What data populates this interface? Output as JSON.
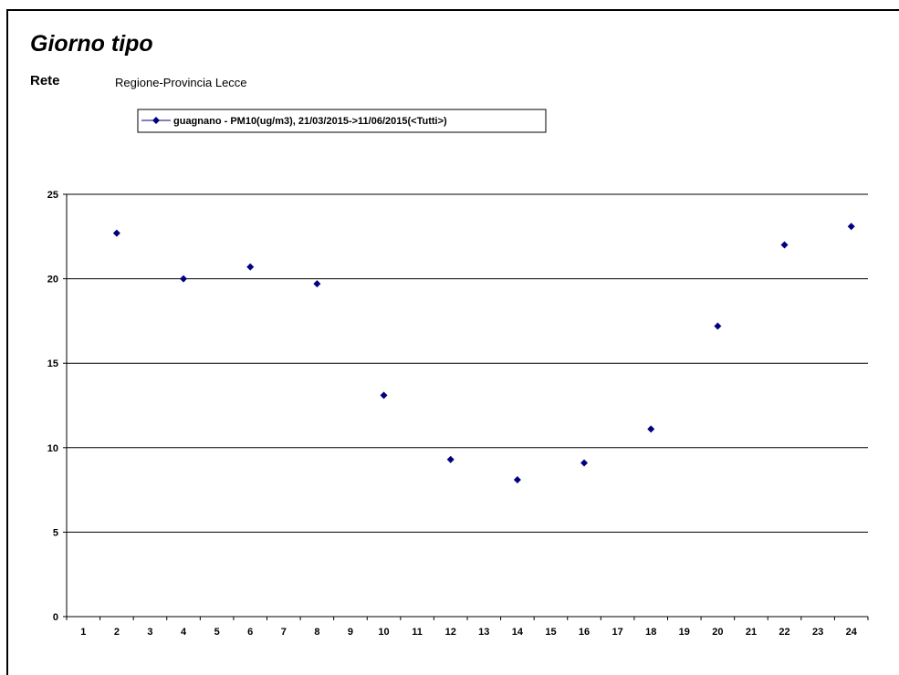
{
  "header": {
    "title": "Giorno tipo",
    "rete_label": "Rete",
    "rete_value": "Regione-Provincia Lecce"
  },
  "chart_data": {
    "type": "scatter",
    "title": "",
    "xlabel": "",
    "ylabel": "",
    "categories": [
      "1",
      "2",
      "3",
      "4",
      "5",
      "6",
      "7",
      "8",
      "9",
      "10",
      "11",
      "12",
      "13",
      "14",
      "15",
      "16",
      "17",
      "18",
      "19",
      "20",
      "21",
      "22",
      "23",
      "24"
    ],
    "series": [
      {
        "name": "guagnano - PM10(ug/m3), 21/03/2015->11/06/2015(<Tutti>)",
        "color": "#000080",
        "x": [
          2,
          4,
          6,
          8,
          10,
          12,
          14,
          16,
          18,
          20,
          22,
          24
        ],
        "y": [
          22.7,
          20.0,
          20.7,
          19.7,
          13.1,
          9.3,
          8.1,
          9.1,
          11.1,
          17.2,
          22.0,
          23.1
        ]
      }
    ],
    "ylim": [
      0,
      25
    ],
    "yticks": [
      0,
      5,
      10,
      15,
      20,
      25
    ],
    "grid": true,
    "legend": "top-left"
  }
}
